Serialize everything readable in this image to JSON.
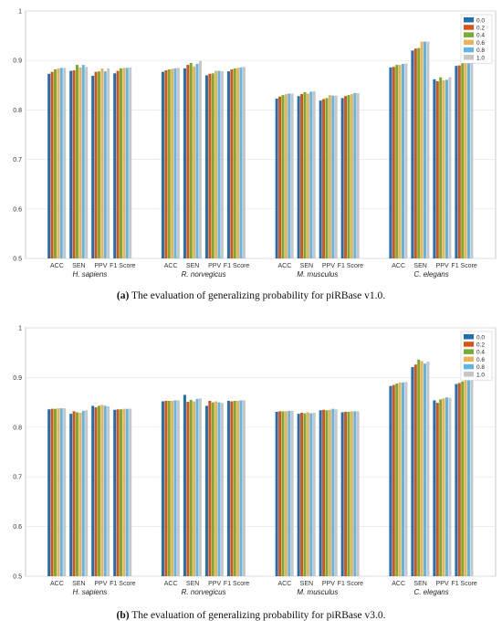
{
  "colors": [
    "#1f6fb4",
    "#d95319",
    "#77ac30",
    "#edb159",
    "#60b7e6",
    "#c6c6c6"
  ],
  "chart_data": [
    {
      "type": "bar",
      "caption_tag": "(a)",
      "caption_text": "The evaluation of generalizing probability for piRBase v1.0.",
      "ylim": [
        0.5,
        1
      ],
      "yticks": [
        0.5,
        0.6,
        0.7,
        0.8,
        0.9,
        1
      ],
      "ytick_labels": [
        "0.5",
        "0.6",
        "0.7",
        "0.8",
        "0.9",
        "1"
      ],
      "grid": true,
      "legend_position": "top-right",
      "series_names": [
        "0.0",
        "0.2",
        "0.4",
        "0.6",
        "0.8",
        "1.0"
      ],
      "groups": [
        {
          "name": "H. sapiens",
          "categories": [
            {
              "label": "ACC",
              "values": [
                0.873,
                0.877,
                0.882,
                0.884,
                0.885,
                0.885
              ]
            },
            {
              "label": "SEN",
              "values": [
                0.879,
                0.88,
                0.891,
                0.886,
                0.891,
                0.887
              ]
            },
            {
              "label": "PPV",
              "values": [
                0.869,
                0.877,
                0.878,
                0.884,
                0.878,
                0.884
              ]
            },
            {
              "label": "F1 Score",
              "values": [
                0.874,
                0.879,
                0.884,
                0.885,
                0.885,
                0.886
              ]
            }
          ]
        },
        {
          "name": "R. norvegicus",
          "categories": [
            {
              "label": "ACC",
              "values": [
                0.877,
                0.88,
                0.882,
                0.883,
                0.884,
                0.885
              ]
            },
            {
              "label": "SEN",
              "values": [
                0.884,
                0.891,
                0.895,
                0.888,
                0.893,
                0.899
              ]
            },
            {
              "label": "PPV",
              "values": [
                0.87,
                0.873,
                0.874,
                0.879,
                0.879,
                0.878
              ]
            },
            {
              "label": "F1 Score",
              "values": [
                0.878,
                0.882,
                0.884,
                0.885,
                0.886,
                0.887
              ]
            }
          ]
        },
        {
          "name": "M. musculus",
          "categories": [
            {
              "label": "ACC",
              "values": [
                0.823,
                0.827,
                0.83,
                0.832,
                0.833,
                0.833
              ]
            },
            {
              "label": "SEN",
              "values": [
                0.828,
                0.832,
                0.836,
                0.833,
                0.837,
                0.838
              ]
            },
            {
              "label": "PPV",
              "values": [
                0.819,
                0.822,
                0.824,
                0.83,
                0.829,
                0.829
              ]
            },
            {
              "label": "F1 Score",
              "values": [
                0.824,
                0.828,
                0.83,
                0.832,
                0.834,
                0.834
              ]
            }
          ]
        },
        {
          "name": "C. elegans",
          "categories": [
            {
              "label": "ACC",
              "values": [
                0.886,
                0.887,
                0.891,
                0.891,
                0.893,
                0.894
              ]
            },
            {
              "label": "SEN",
              "values": [
                0.92,
                0.924,
                0.925,
                0.938,
                0.938,
                0.938
              ]
            },
            {
              "label": "PPV",
              "values": [
                0.862,
                0.858,
                0.866,
                0.86,
                0.861,
                0.866
              ]
            },
            {
              "label": "F1 Score",
              "values": [
                0.889,
                0.89,
                0.895,
                0.896,
                0.897,
                0.898
              ]
            }
          ]
        }
      ]
    },
    {
      "type": "bar",
      "caption_tag": "(b)",
      "caption_text": "The evaluation of generalizing probability for piRBase v3.0.",
      "ylim": [
        0.5,
        1
      ],
      "yticks": [
        0.5,
        0.6,
        0.7,
        0.8,
        0.9,
        1
      ],
      "ytick_labels": [
        "0.5",
        "0.6",
        "0.7",
        "0.8",
        "0.9",
        "1"
      ],
      "grid": true,
      "legend_position": "top-right",
      "series_names": [
        "0.0",
        "0.2",
        "0.4",
        "0.6",
        "0.8",
        "1.0"
      ],
      "groups": [
        {
          "name": "H. sapiens",
          "categories": [
            {
              "label": "ACC",
              "values": [
                0.836,
                0.837,
                0.837,
                0.838,
                0.838,
                0.838
              ]
            },
            {
              "label": "SEN",
              "values": [
                0.827,
                0.832,
                0.83,
                0.829,
                0.833,
                0.834
              ]
            },
            {
              "label": "PPV",
              "values": [
                0.843,
                0.84,
                0.843,
                0.845,
                0.843,
                0.842
              ]
            },
            {
              "label": "F1 Score",
              "values": [
                0.835,
                0.836,
                0.836,
                0.837,
                0.837,
                0.837
              ]
            }
          ]
        },
        {
          "name": "R. norvegicus",
          "categories": [
            {
              "label": "ACC",
              "values": [
                0.852,
                0.853,
                0.853,
                0.853,
                0.854,
                0.854
              ]
            },
            {
              "label": "SEN",
              "values": [
                0.865,
                0.851,
                0.855,
                0.852,
                0.857,
                0.858
              ]
            },
            {
              "label": "PPV",
              "values": [
                0.843,
                0.853,
                0.85,
                0.852,
                0.85,
                0.849
              ]
            },
            {
              "label": "F1 Score",
              "values": [
                0.853,
                0.852,
                0.853,
                0.853,
                0.854,
                0.854
              ]
            }
          ]
        },
        {
          "name": "M. musculus",
          "categories": [
            {
              "label": "ACC",
              "values": [
                0.831,
                0.832,
                0.832,
                0.832,
                0.833,
                0.833
              ]
            },
            {
              "label": "SEN",
              "values": [
                0.827,
                0.829,
                0.828,
                0.83,
                0.828,
                0.829
              ]
            },
            {
              "label": "PPV",
              "values": [
                0.834,
                0.835,
                0.834,
                0.835,
                0.837,
                0.836
              ]
            },
            {
              "label": "F1 Score",
              "values": [
                0.83,
                0.831,
                0.831,
                0.832,
                0.832,
                0.832
              ]
            }
          ]
        },
        {
          "name": "C. elegans",
          "categories": [
            {
              "label": "ACC",
              "values": [
                0.883,
                0.885,
                0.888,
                0.89,
                0.89,
                0.891
              ]
            },
            {
              "label": "SEN",
              "values": [
                0.921,
                0.926,
                0.936,
                0.933,
                0.928,
                0.932
              ]
            },
            {
              "label": "PPV",
              "values": [
                0.854,
                0.849,
                0.856,
                0.858,
                0.86,
                0.859
              ]
            },
            {
              "label": "F1 Score",
              "values": [
                0.887,
                0.889,
                0.892,
                0.894,
                0.894,
                0.894
              ]
            }
          ]
        }
      ]
    }
  ]
}
